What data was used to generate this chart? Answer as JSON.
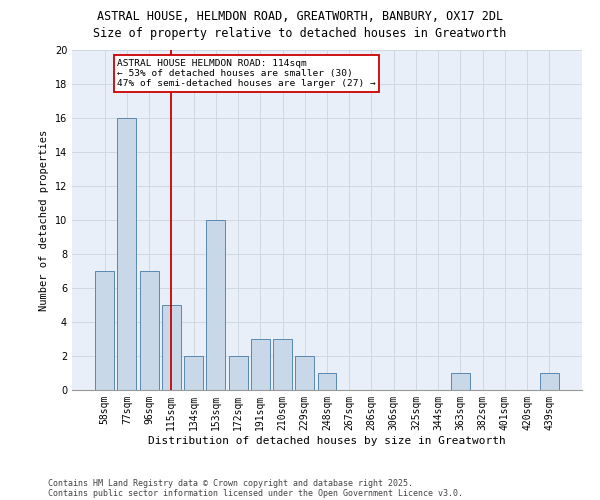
{
  "title1": "ASTRAL HOUSE, HELMDON ROAD, GREATWORTH, BANBURY, OX17 2DL",
  "title2": "Size of property relative to detached houses in Greatworth",
  "xlabel": "Distribution of detached houses by size in Greatworth",
  "ylabel": "Number of detached properties",
  "categories": [
    "58sqm",
    "77sqm",
    "96sqm",
    "115sqm",
    "134sqm",
    "153sqm",
    "172sqm",
    "191sqm",
    "210sqm",
    "229sqm",
    "248sqm",
    "267sqm",
    "286sqm",
    "306sqm",
    "325sqm",
    "344sqm",
    "363sqm",
    "382sqm",
    "401sqm",
    "420sqm",
    "439sqm"
  ],
  "values": [
    7,
    16,
    7,
    5,
    2,
    10,
    2,
    3,
    3,
    2,
    1,
    0,
    0,
    0,
    0,
    0,
    1,
    0,
    0,
    0,
    1
  ],
  "bar_color": "#c8d8e8",
  "bar_edge_color": "#5a88b0",
  "grid_color": "#d0d8e0",
  "bg_color": "#e8eff8",
  "ref_line_x": 3.0,
  "ref_line_color": "#cc0000",
  "annotation_text": "ASTRAL HOUSE HELMDON ROAD: 114sqm\n← 53% of detached houses are smaller (30)\n47% of semi-detached houses are larger (27) →",
  "annotation_box_color": "#cc0000",
  "footer1": "Contains HM Land Registry data © Crown copyright and database right 2025.",
  "footer2": "Contains public sector information licensed under the Open Government Licence v3.0.",
  "ylim": [
    0,
    20
  ],
  "yticks": [
    0,
    2,
    4,
    6,
    8,
    10,
    12,
    14,
    16,
    18,
    20
  ],
  "title_fontsize": 8.5,
  "ylabel_fontsize": 7.5,
  "xlabel_fontsize": 8,
  "tick_fontsize": 7,
  "annot_fontsize": 6.8,
  "footer_fontsize": 6
}
